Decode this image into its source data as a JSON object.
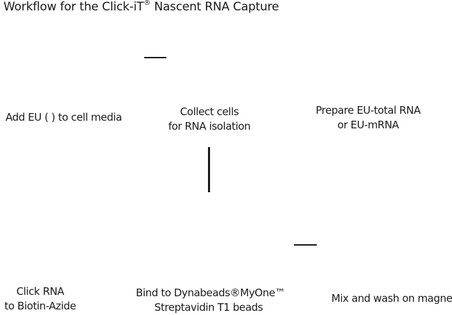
{
  "title": {
    "text": "Workflow for the Click-iT",
    "superscript": "®",
    "suffix": " Nascent RNA Capture"
  },
  "steps": [
    {
      "lines": [
        "Add EU (  ) to cell media"
      ]
    },
    {
      "lines": [
        "Collect cells",
        "for RNA isolation"
      ]
    },
    {
      "lines": [
        "Prepare EU-total RNA",
        "or EU-mRNA"
      ]
    },
    {
      "lines": [
        "Click RNA",
        "to Biotin-Azide"
      ]
    },
    {
      "lines": [
        "Bind to Dynabeads®MyOne™",
        "Streptavidin T1 beads"
      ]
    },
    {
      "lines": [
        "Mix and wash on magnet"
      ]
    }
  ]
}
